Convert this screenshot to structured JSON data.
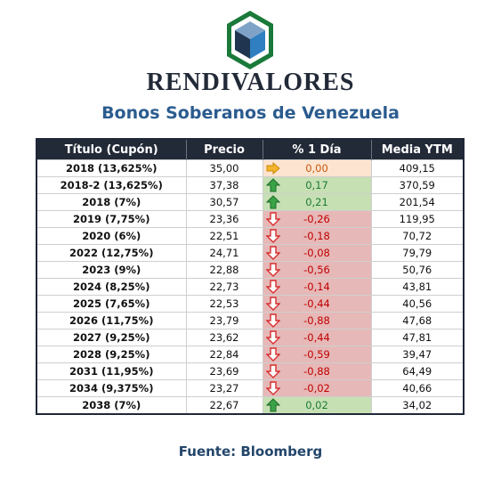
{
  "brand": "RENDIVALORES",
  "title": "Bonos Soberanos de Venezuela",
  "table": {
    "headers": [
      "Título (Cupón)",
      "Precio",
      "% 1 Día",
      "Media YTM"
    ],
    "rows": [
      {
        "bond": "2018 (13,625%)",
        "price": "35,00",
        "change": "0,00",
        "trend": "flat",
        "ytm": "409,15"
      },
      {
        "bond": "2018-2 (13,625%)",
        "price": "37,38",
        "change": "0,17",
        "trend": "up",
        "ytm": "370,59"
      },
      {
        "bond": "2018 (7%)",
        "price": "30,57",
        "change": "0,21",
        "trend": "up",
        "ytm": "201,54"
      },
      {
        "bond": "2019 (7,75%)",
        "price": "23,36",
        "change": "-0,26",
        "trend": "down",
        "ytm": "119,95"
      },
      {
        "bond": "2020 (6%)",
        "price": "22,51",
        "change": "-0,18",
        "trend": "down",
        "ytm": "70,72"
      },
      {
        "bond": "2022 (12,75%)",
        "price": "24,71",
        "change": "-0,08",
        "trend": "down",
        "ytm": "79,79"
      },
      {
        "bond": "2023 (9%)",
        "price": "22,88",
        "change": "-0,56",
        "trend": "down",
        "ytm": "50,76"
      },
      {
        "bond": "2024 (8,25%)",
        "price": "22,73",
        "change": "-0,14",
        "trend": "down",
        "ytm": "43,81"
      },
      {
        "bond": "2025 (7,65%)",
        "price": "22,53",
        "change": "-0,44",
        "trend": "down",
        "ytm": "40,56"
      },
      {
        "bond": "2026 (11,75%)",
        "price": "23,79",
        "change": "-0,88",
        "trend": "down",
        "ytm": "47,68"
      },
      {
        "bond": "2027 (9,25%)",
        "price": "23,62",
        "change": "-0,44",
        "trend": "down",
        "ytm": "47,81"
      },
      {
        "bond": "2028 (9,25%)",
        "price": "22,84",
        "change": "-0,59",
        "trend": "down",
        "ytm": "39,47"
      },
      {
        "bond": "2031 (11,95%)",
        "price": "23,69",
        "change": "-0,88",
        "trend": "down",
        "ytm": "64,49"
      },
      {
        "bond": "2034 (9,375%)",
        "price": "23,27",
        "change": "-0,02",
        "trend": "down",
        "ytm": "40,66"
      },
      {
        "bond": "2038 (7%)",
        "price": "22,67",
        "change": "0,02",
        "trend": "up",
        "ytm": "34,02"
      }
    ]
  },
  "source": "Fuente: Bloomberg",
  "colors": {
    "header_bg": "#222a38",
    "title": "#2b5c8f",
    "up_bg": "#c6e0b4",
    "down_bg": "#e6b8b7",
    "flat_bg": "#fde4d0",
    "logo_green": "#1a7a3a",
    "logo_blue": "#2f7fc1"
  },
  "icons": {
    "logo": "hexagon-cube-logo",
    "up": "arrow-up-icon",
    "down": "arrow-down-icon",
    "flat": "arrow-right-icon"
  }
}
